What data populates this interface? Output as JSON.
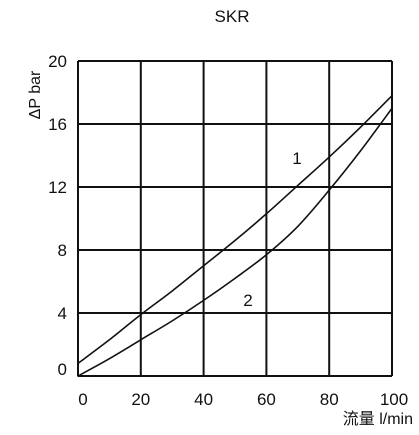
{
  "chart_data": {
    "type": "line",
    "title": "SKR",
    "xlabel": "流量 l/min",
    "ylabel": "ΔP bar",
    "xlim": [
      0,
      100
    ],
    "ylim": [
      0,
      20
    ],
    "xticks": [
      0,
      20,
      40,
      60,
      80,
      100
    ],
    "yticks": [
      0,
      4,
      8,
      12,
      16,
      20
    ],
    "grid": true,
    "series": [
      {
        "name": "1",
        "x": [
          0,
          10,
          20,
          30,
          40,
          50,
          60,
          70,
          80,
          90,
          100
        ],
        "y": [
          0.8,
          2.3,
          3.9,
          5.4,
          7.0,
          8.6,
          10.3,
          12.1,
          13.9,
          15.8,
          17.8
        ]
      },
      {
        "name": "2",
        "x": [
          0,
          10,
          20,
          30,
          40,
          50,
          60,
          70,
          80,
          90,
          100
        ],
        "y": [
          0,
          1.1,
          2.3,
          3.5,
          4.8,
          6.2,
          7.7,
          9.5,
          11.8,
          14.3,
          17.0
        ]
      }
    ],
    "colors": {
      "grid": "#111111",
      "curve": "#111111",
      "background": "#ffffff"
    }
  }
}
